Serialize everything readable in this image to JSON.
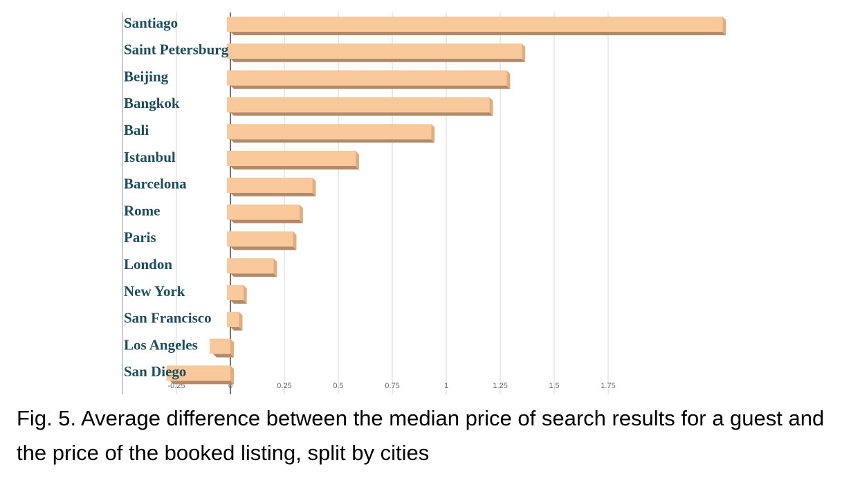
{
  "chart_data": {
    "type": "barh",
    "caption": "Fig. 5.  Average difference between the median price of search results for a guest and the price of the booked listing, split by cities",
    "categories": [
      "Santiago",
      "Saint Petersburg",
      "Beijing",
      "Bangkok",
      "Bali",
      "Istanbul",
      "Barcelona",
      "Rome",
      "Paris",
      "London",
      "New York",
      "San Francisco",
      "Los Angeles",
      "San Diego"
    ],
    "values": [
      2.28,
      1.35,
      1.28,
      1.2,
      0.93,
      0.58,
      0.38,
      0.32,
      0.29,
      0.2,
      0.06,
      0.04,
      -0.08,
      -0.28
    ],
    "color": "#f9c89b",
    "xlim": [
      -0.5,
      2.5
    ],
    "xticks": [
      -0.25,
      0,
      0.25,
      0.5,
      0.75,
      1,
      1.25,
      1.5,
      1.75
    ],
    "grid": true
  }
}
